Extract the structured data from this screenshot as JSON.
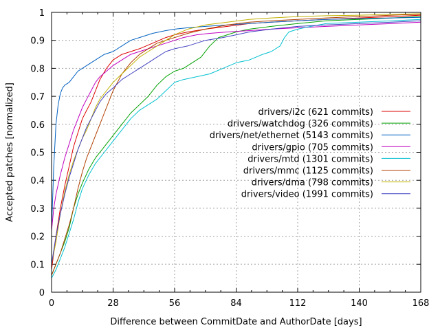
{
  "chart_data": {
    "type": "line",
    "title": "",
    "xlabel": "Difference between CommitDate and AuthorDate [days]",
    "ylabel": "Accepted patches [normalized]",
    "xlim": [
      0,
      168
    ],
    "ylim": [
      0,
      1
    ],
    "xticks": [
      0,
      28,
      56,
      84,
      112,
      140,
      168
    ],
    "yticks": [
      0,
      0.1,
      0.2,
      0.3,
      0.4,
      0.5,
      0.6,
      0.7,
      0.8,
      0.9,
      1
    ],
    "xtick_labels": [
      "0",
      "28",
      "56",
      "84",
      "112",
      "140",
      "168"
    ],
    "ytick_labels": [
      "0",
      "0.1",
      "0.2",
      "0.3",
      "0.4",
      "0.5",
      "0.6",
      "0.7",
      "0.8",
      "0.9",
      "1"
    ],
    "grid": true,
    "legend_position": "right",
    "series": [
      {
        "name": "drivers/i2c (621 commits)",
        "color": "#dd0000",
        "points": [
          [
            0,
            0.08
          ],
          [
            2,
            0.2
          ],
          [
            4,
            0.3
          ],
          [
            6,
            0.38
          ],
          [
            8,
            0.45
          ],
          [
            10,
            0.52
          ],
          [
            12,
            0.57
          ],
          [
            14,
            0.62
          ],
          [
            16,
            0.65
          ],
          [
            18,
            0.68
          ],
          [
            20,
            0.72
          ],
          [
            22,
            0.76
          ],
          [
            25,
            0.8
          ],
          [
            28,
            0.83
          ],
          [
            32,
            0.85
          ],
          [
            36,
            0.86
          ],
          [
            40,
            0.87
          ],
          [
            46,
            0.89
          ],
          [
            52,
            0.91
          ],
          [
            56,
            0.92
          ],
          [
            62,
            0.93
          ],
          [
            70,
            0.94
          ],
          [
            80,
            0.95
          ],
          [
            90,
            0.96
          ],
          [
            100,
            0.965
          ],
          [
            112,
            0.97
          ],
          [
            125,
            0.975
          ],
          [
            140,
            0.98
          ],
          [
            155,
            0.985
          ],
          [
            168,
            0.99
          ]
        ]
      },
      {
        "name": "drivers/watchdog (326 commits)",
        "color": "#00a000",
        "points": [
          [
            0,
            0.06
          ],
          [
            2,
            0.1
          ],
          [
            4,
            0.14
          ],
          [
            6,
            0.18
          ],
          [
            8,
            0.23
          ],
          [
            10,
            0.3
          ],
          [
            12,
            0.35
          ],
          [
            14,
            0.39
          ],
          [
            17,
            0.44
          ],
          [
            20,
            0.48
          ],
          [
            24,
            0.52
          ],
          [
            28,
            0.56
          ],
          [
            32,
            0.6
          ],
          [
            36,
            0.64
          ],
          [
            40,
            0.67
          ],
          [
            44,
            0.7
          ],
          [
            48,
            0.74
          ],
          [
            52,
            0.77
          ],
          [
            56,
            0.79
          ],
          [
            60,
            0.8
          ],
          [
            64,
            0.82
          ],
          [
            68,
            0.84
          ],
          [
            72,
            0.88
          ],
          [
            76,
            0.91
          ],
          [
            80,
            0.92
          ],
          [
            84,
            0.93
          ],
          [
            90,
            0.94
          ],
          [
            100,
            0.95
          ],
          [
            112,
            0.96
          ],
          [
            125,
            0.97
          ],
          [
            140,
            0.975
          ],
          [
            155,
            0.98
          ],
          [
            168,
            0.985
          ]
        ]
      },
      {
        "name": "drivers/net/ethernet (5143 commits)",
        "color": "#0060c0",
        "points": [
          [
            0,
            0.22
          ],
          [
            1,
            0.45
          ],
          [
            2,
            0.6
          ],
          [
            3,
            0.67
          ],
          [
            4,
            0.71
          ],
          [
            5,
            0.73
          ],
          [
            6,
            0.74
          ],
          [
            8,
            0.75
          ],
          [
            10,
            0.77
          ],
          [
            12,
            0.79
          ],
          [
            14,
            0.8
          ],
          [
            16,
            0.81
          ],
          [
            20,
            0.83
          ],
          [
            24,
            0.85
          ],
          [
            28,
            0.86
          ],
          [
            32,
            0.88
          ],
          [
            36,
            0.9
          ],
          [
            40,
            0.91
          ],
          [
            46,
            0.925
          ],
          [
            52,
            0.935
          ],
          [
            56,
            0.94
          ],
          [
            62,
            0.945
          ],
          [
            70,
            0.95
          ],
          [
            80,
            0.955
          ],
          [
            90,
            0.96
          ],
          [
            100,
            0.965
          ],
          [
            112,
            0.97
          ],
          [
            125,
            0.975
          ],
          [
            140,
            0.978
          ],
          [
            155,
            0.98
          ],
          [
            168,
            0.982
          ]
        ]
      },
      {
        "name": "drivers/gpio (705 commits)",
        "color": "#c000c0",
        "points": [
          [
            0,
            0.22
          ],
          [
            1,
            0.3
          ],
          [
            2,
            0.35
          ],
          [
            4,
            0.42
          ],
          [
            6,
            0.48
          ],
          [
            8,
            0.53
          ],
          [
            10,
            0.58
          ],
          [
            12,
            0.62
          ],
          [
            14,
            0.66
          ],
          [
            16,
            0.69
          ],
          [
            18,
            0.72
          ],
          [
            20,
            0.75
          ],
          [
            22,
            0.77
          ],
          [
            25,
            0.79
          ],
          [
            28,
            0.81
          ],
          [
            32,
            0.83
          ],
          [
            36,
            0.85
          ],
          [
            40,
            0.86
          ],
          [
            44,
            0.87
          ],
          [
            48,
            0.88
          ],
          [
            52,
            0.89
          ],
          [
            56,
            0.9
          ],
          [
            60,
            0.91
          ],
          [
            66,
            0.92
          ],
          [
            72,
            0.925
          ],
          [
            80,
            0.93
          ],
          [
            90,
            0.935
          ],
          [
            100,
            0.94
          ],
          [
            112,
            0.945
          ],
          [
            125,
            0.95
          ],
          [
            140,
            0.955
          ],
          [
            155,
            0.96
          ],
          [
            168,
            0.965
          ]
        ]
      },
      {
        "name": "drivers/mtd (1301 commits)",
        "color": "#00c0d0",
        "points": [
          [
            0,
            0.05
          ],
          [
            2,
            0.08
          ],
          [
            4,
            0.12
          ],
          [
            6,
            0.16
          ],
          [
            8,
            0.21
          ],
          [
            10,
            0.26
          ],
          [
            12,
            0.32
          ],
          [
            14,
            0.37
          ],
          [
            17,
            0.42
          ],
          [
            20,
            0.46
          ],
          [
            24,
            0.5
          ],
          [
            28,
            0.54
          ],
          [
            32,
            0.58
          ],
          [
            36,
            0.62
          ],
          [
            40,
            0.65
          ],
          [
            44,
            0.67
          ],
          [
            48,
            0.69
          ],
          [
            52,
            0.72
          ],
          [
            56,
            0.75
          ],
          [
            60,
            0.76
          ],
          [
            66,
            0.77
          ],
          [
            72,
            0.78
          ],
          [
            78,
            0.8
          ],
          [
            84,
            0.82
          ],
          [
            90,
            0.83
          ],
          [
            96,
            0.85
          ],
          [
            100,
            0.86
          ],
          [
            104,
            0.88
          ],
          [
            106,
            0.91
          ],
          [
            108,
            0.93
          ],
          [
            112,
            0.94
          ],
          [
            118,
            0.95
          ],
          [
            125,
            0.96
          ],
          [
            140,
            0.965
          ],
          [
            155,
            0.97
          ],
          [
            168,
            0.975
          ]
        ]
      },
      {
        "name": "drivers/mmc (1125 commits)",
        "color": "#b04000",
        "points": [
          [
            0,
            0.06
          ],
          [
            2,
            0.1
          ],
          [
            4,
            0.14
          ],
          [
            6,
            0.19
          ],
          [
            8,
            0.24
          ],
          [
            10,
            0.3
          ],
          [
            12,
            0.37
          ],
          [
            14,
            0.43
          ],
          [
            16,
            0.48
          ],
          [
            18,
            0.52
          ],
          [
            20,
            0.56
          ],
          [
            22,
            0.6
          ],
          [
            24,
            0.64
          ],
          [
            26,
            0.68
          ],
          [
            28,
            0.72
          ],
          [
            30,
            0.75
          ],
          [
            32,
            0.78
          ],
          [
            34,
            0.8
          ],
          [
            36,
            0.82
          ],
          [
            40,
            0.85
          ],
          [
            44,
            0.87
          ],
          [
            48,
            0.89
          ],
          [
            52,
            0.9
          ],
          [
            56,
            0.91
          ],
          [
            62,
            0.925
          ],
          [
            70,
            0.94
          ],
          [
            80,
            0.955
          ],
          [
            90,
            0.965
          ],
          [
            100,
            0.97
          ],
          [
            112,
            0.975
          ],
          [
            125,
            0.98
          ],
          [
            140,
            0.985
          ],
          [
            155,
            0.99
          ],
          [
            168,
            0.993
          ]
        ]
      },
      {
        "name": "drivers/dma (798 commits)",
        "color": "#c0b000",
        "points": [
          [
            0,
            0.1
          ],
          [
            2,
            0.18
          ],
          [
            4,
            0.28
          ],
          [
            6,
            0.36
          ],
          [
            8,
            0.42
          ],
          [
            10,
            0.47
          ],
          [
            12,
            0.51
          ],
          [
            14,
            0.55
          ],
          [
            16,
            0.58
          ],
          [
            18,
            0.62
          ],
          [
            20,
            0.66
          ],
          [
            22,
            0.69
          ],
          [
            25,
            0.72
          ],
          [
            28,
            0.75
          ],
          [
            32,
            0.78
          ],
          [
            36,
            0.81
          ],
          [
            40,
            0.84
          ],
          [
            44,
            0.86
          ],
          [
            48,
            0.88
          ],
          [
            52,
            0.9
          ],
          [
            56,
            0.92
          ],
          [
            62,
            0.94
          ],
          [
            70,
            0.955
          ],
          [
            80,
            0.965
          ],
          [
            90,
            0.975
          ],
          [
            100,
            0.98
          ],
          [
            112,
            0.985
          ],
          [
            125,
            0.988
          ],
          [
            140,
            0.99
          ],
          [
            155,
            0.993
          ],
          [
            168,
            0.995
          ]
        ]
      },
      {
        "name": "drivers/video (1991 commits)",
        "color": "#4040c0",
        "points": [
          [
            0,
            0.1
          ],
          [
            2,
            0.2
          ],
          [
            4,
            0.28
          ],
          [
            6,
            0.35
          ],
          [
            8,
            0.41
          ],
          [
            10,
            0.46
          ],
          [
            12,
            0.51
          ],
          [
            14,
            0.55
          ],
          [
            16,
            0.59
          ],
          [
            18,
            0.62
          ],
          [
            20,
            0.65
          ],
          [
            22,
            0.68
          ],
          [
            25,
            0.71
          ],
          [
            28,
            0.73
          ],
          [
            32,
            0.76
          ],
          [
            36,
            0.78
          ],
          [
            40,
            0.8
          ],
          [
            44,
            0.82
          ],
          [
            48,
            0.84
          ],
          [
            52,
            0.86
          ],
          [
            56,
            0.87
          ],
          [
            62,
            0.88
          ],
          [
            70,
            0.9
          ],
          [
            78,
            0.91
          ],
          [
            84,
            0.92
          ],
          [
            90,
            0.93
          ],
          [
            100,
            0.94
          ],
          [
            112,
            0.95
          ],
          [
            125,
            0.955
          ],
          [
            140,
            0.96
          ],
          [
            155,
            0.965
          ],
          [
            168,
            0.97
          ]
        ]
      }
    ]
  }
}
